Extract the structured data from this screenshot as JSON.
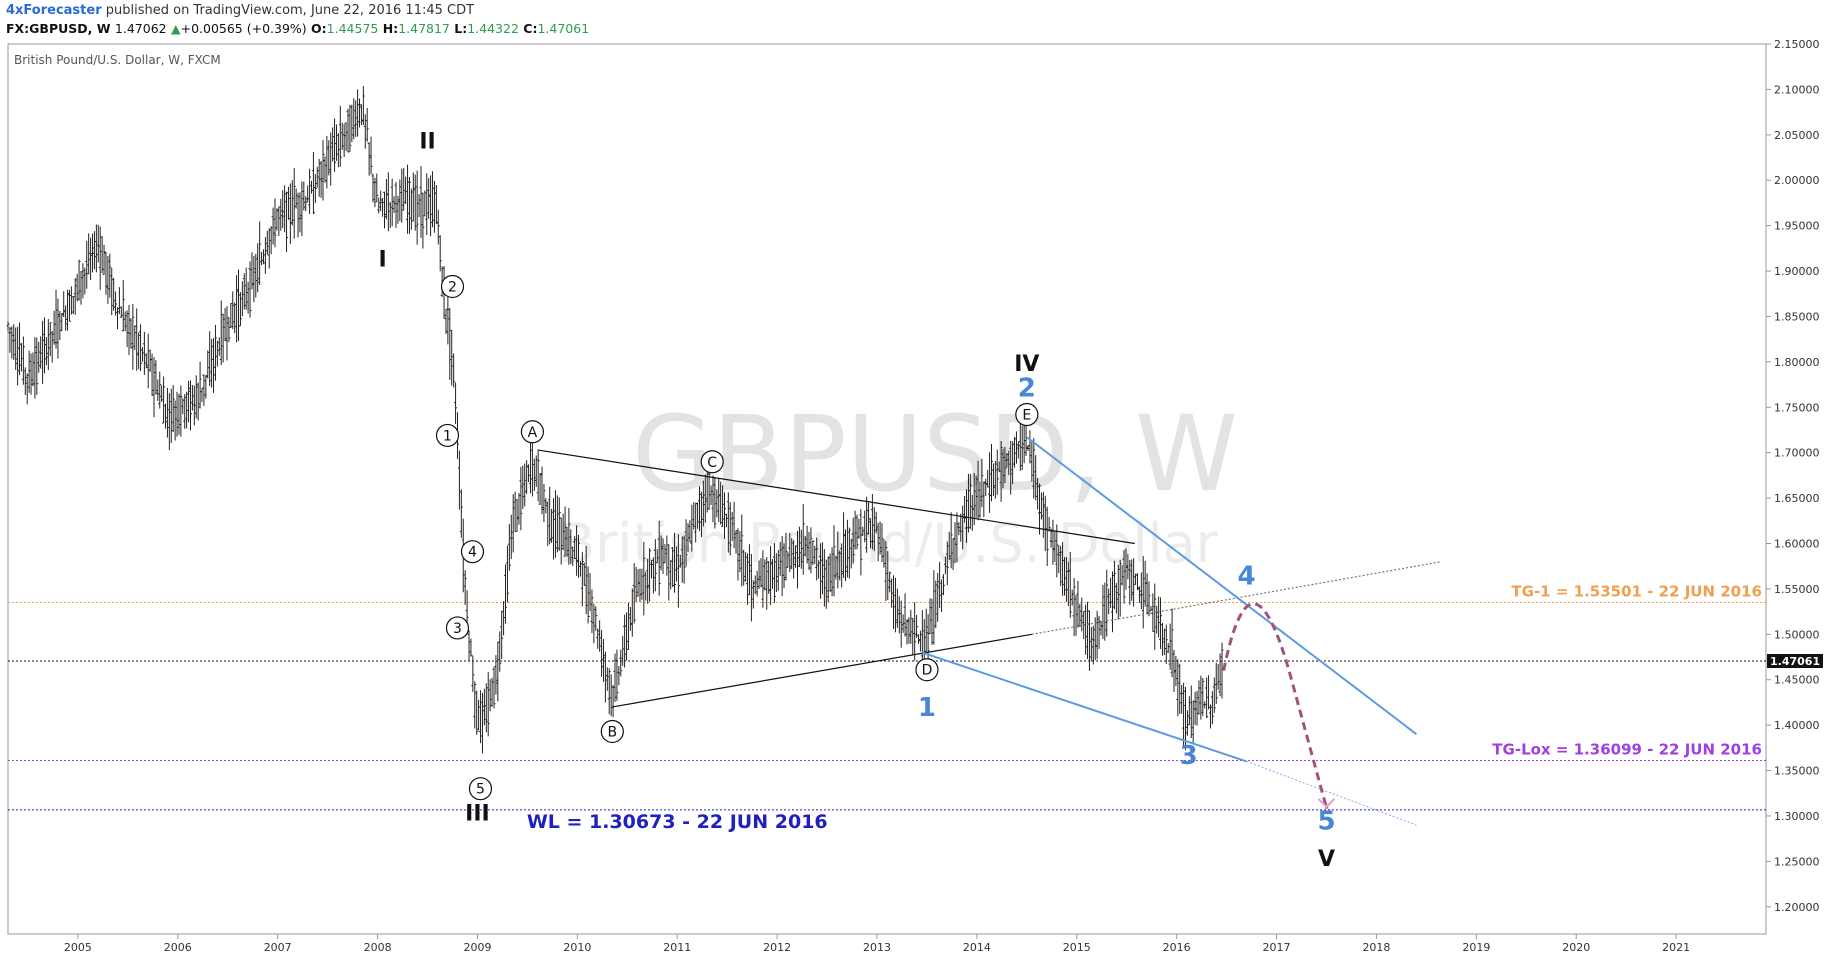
{
  "header": {
    "author": "4xForecaster",
    "published": "published on TradingView.com, June 22, 2016 11:45 CDT",
    "symbol": "FX:GBPUSD, W",
    "last": "1.47062",
    "change": "+0.00565 (+0.39%)",
    "o_label": "O:",
    "o_value": "1.44575",
    "h_label": "H:",
    "h_value": "1.47817",
    "l_label": "L:",
    "l_value": "1.44322",
    "c_label": "C:",
    "c_value": "1.47061"
  },
  "chart_data": {
    "type": "candlestick",
    "title": "British Pound/U.S. Dollar, W, FXCM",
    "watermark_symbol": "GBPUSD, W",
    "watermark_name": "British Pound/U.S. Dollar",
    "ylim": [
      1.17,
      2.15
    ],
    "xlim": [
      2004.3,
      2021.9
    ],
    "y_ticks": [
      "1.20000",
      "1.25000",
      "1.30000",
      "1.35000",
      "1.40000",
      "1.45000",
      "1.50000",
      "1.55000",
      "1.60000",
      "1.65000",
      "1.70000",
      "1.75000",
      "1.80000",
      "1.85000",
      "1.90000",
      "1.95000",
      "2.00000",
      "2.05000",
      "2.10000",
      "2.15000"
    ],
    "x_ticks": [
      "2005",
      "2006",
      "2007",
      "2008",
      "2009",
      "2010",
      "2011",
      "2012",
      "2013",
      "2014",
      "2015",
      "2016",
      "2017",
      "2018",
      "2019",
      "2020",
      "2021"
    ],
    "current_price": "1.47061",
    "price_path": [
      [
        2004.3,
        1.84
      ],
      [
        2004.5,
        1.78
      ],
      [
        2004.9,
        1.86
      ],
      [
        2005.2,
        1.93
      ],
      [
        2005.4,
        1.86
      ],
      [
        2005.7,
        1.8
      ],
      [
        2005.9,
        1.74
      ],
      [
        2006.2,
        1.76
      ],
      [
        2006.5,
        1.84
      ],
      [
        2006.8,
        1.9
      ],
      [
        2007.0,
        1.96
      ],
      [
        2007.3,
        1.98
      ],
      [
        2007.6,
        2.04
      ],
      [
        2007.85,
        2.08
      ],
      [
        2008.0,
        1.97
      ],
      [
        2008.2,
        1.98
      ],
      [
        2008.5,
        1.97
      ],
      [
        2008.6,
        1.97
      ],
      [
        2008.65,
        1.88
      ],
      [
        2008.75,
        1.81
      ],
      [
        2008.8,
        1.72
      ],
      [
        2008.85,
        1.6
      ],
      [
        2008.9,
        1.52
      ],
      [
        2008.98,
        1.42
      ],
      [
        2009.05,
        1.4
      ],
      [
        2009.2,
        1.46
      ],
      [
        2009.35,
        1.62
      ],
      [
        2009.55,
        1.69
      ],
      [
        2009.75,
        1.62
      ],
      [
        2010.0,
        1.59
      ],
      [
        2010.15,
        1.53
      ],
      [
        2010.35,
        1.43
      ],
      [
        2010.6,
        1.55
      ],
      [
        2010.85,
        1.59
      ],
      [
        2011.0,
        1.57
      ],
      [
        2011.3,
        1.66
      ],
      [
        2011.55,
        1.62
      ],
      [
        2011.75,
        1.55
      ],
      [
        2012.0,
        1.57
      ],
      [
        2012.3,
        1.6
      ],
      [
        2012.5,
        1.56
      ],
      [
        2012.8,
        1.61
      ],
      [
        2013.0,
        1.62
      ],
      [
        2013.2,
        1.52
      ],
      [
        2013.5,
        1.49
      ],
      [
        2013.75,
        1.6
      ],
      [
        2014.0,
        1.65
      ],
      [
        2014.3,
        1.69
      ],
      [
        2014.5,
        1.71
      ],
      [
        2014.7,
        1.62
      ],
      [
        2014.9,
        1.56
      ],
      [
        2015.15,
        1.49
      ],
      [
        2015.3,
        1.53
      ],
      [
        2015.5,
        1.57
      ],
      [
        2015.7,
        1.54
      ],
      [
        2015.95,
        1.48
      ],
      [
        2016.1,
        1.4
      ],
      [
        2016.25,
        1.43
      ],
      [
        2016.35,
        1.42
      ],
      [
        2016.47,
        1.47
      ]
    ],
    "lines": [
      {
        "name": "triangle-upper",
        "color": "#111111",
        "points": [
          [
            2009.6,
            1.703
          ],
          [
            2015.58,
            1.6
          ]
        ]
      },
      {
        "name": "triangle-lower",
        "color": "#111111",
        "points": [
          [
            2010.35,
            1.42
          ],
          [
            2014.55,
            1.5
          ]
        ]
      },
      {
        "name": "triangle-lower-ext",
        "color": "#777777",
        "dash": true,
        "points": [
          [
            2014.55,
            1.5
          ],
          [
            2018.65,
            1.58
          ]
        ]
      },
      {
        "name": "channel-upper",
        "color": "#5b9be0",
        "points": [
          [
            2014.5,
            1.717
          ],
          [
            2018.4,
            1.39
          ]
        ]
      },
      {
        "name": "channel-lower",
        "color": "#5b9be0",
        "points": [
          [
            2013.45,
            1.48
          ],
          [
            2016.7,
            1.36
          ]
        ]
      },
      {
        "name": "channel-lower-ext",
        "color": "#9ab8e8",
        "dash": true,
        "points": [
          [
            2016.7,
            1.36
          ],
          [
            2018.4,
            1.29
          ]
        ]
      }
    ],
    "projection": {
      "color": "#a0527a",
      "points": [
        [
          2016.47,
          1.46
        ],
        [
          2016.75,
          1.535
        ],
        [
          2017.15,
          1.45
        ],
        [
          2017.5,
          1.31
        ]
      ]
    },
    "horizontal_levels": [
      {
        "label": "TG-1 = 1.53501 - 22 JUN 2016",
        "value": 1.53501,
        "color": "#f0a050"
      },
      {
        "label": "TG-Lox = 1.36099 - 22 JUN 2016",
        "value": 1.36099,
        "color": "#a040e0"
      },
      {
        "label": "WL = 1.30673 - 22 JUN 2016",
        "value": 1.30673,
        "color": "#2020c0"
      },
      {
        "label": "",
        "value": 1.47061,
        "color": "#111111"
      }
    ],
    "wave_labels": [
      {
        "text": "I",
        "x": 2008.05,
        "y": 1.905,
        "color": "#111111",
        "style": "roman"
      },
      {
        "text": "II",
        "x": 2008.5,
        "y": 2.035,
        "color": "#111111",
        "style": "roman"
      },
      {
        "text": "III",
        "x": 2009.0,
        "y": 1.295,
        "color": "#111111",
        "style": "roman"
      },
      {
        "text": "IV",
        "x": 2014.5,
        "y": 1.79,
        "color": "#111111",
        "style": "roman"
      },
      {
        "text": "V",
        "x": 2017.5,
        "y": 1.245,
        "color": "#111111",
        "style": "roman"
      },
      {
        "text": "1",
        "x": 2013.5,
        "y": 1.41,
        "color": "#4a86d8",
        "style": "blue"
      },
      {
        "text": "2",
        "x": 2014.5,
        "y": 1.762,
        "color": "#4a86d8",
        "style": "blue"
      },
      {
        "text": "3",
        "x": 2016.12,
        "y": 1.357,
        "color": "#4a86d8",
        "style": "blue"
      },
      {
        "text": "4",
        "x": 2016.7,
        "y": 1.555,
        "color": "#4a86d8",
        "style": "blue"
      },
      {
        "text": "5",
        "x": 2017.5,
        "y": 1.285,
        "color": "#4a86d8",
        "style": "blue"
      }
    ],
    "circle_labels": [
      {
        "text": "1",
        "x": 2008.7,
        "y": 1.719
      },
      {
        "text": "2",
        "x": 2008.75,
        "y": 1.883
      },
      {
        "text": "3",
        "x": 2008.8,
        "y": 1.507
      },
      {
        "text": "4",
        "x": 2008.95,
        "y": 1.591
      },
      {
        "text": "5",
        "x": 2009.03,
        "y": 1.33
      },
      {
        "text": "A",
        "x": 2009.55,
        "y": 1.723
      },
      {
        "text": "B",
        "x": 2010.35,
        "y": 1.393
      },
      {
        "text": "C",
        "x": 2011.35,
        "y": 1.69
      },
      {
        "text": "D",
        "x": 2013.5,
        "y": 1.461
      },
      {
        "text": "E",
        "x": 2014.5,
        "y": 1.742
      }
    ]
  }
}
